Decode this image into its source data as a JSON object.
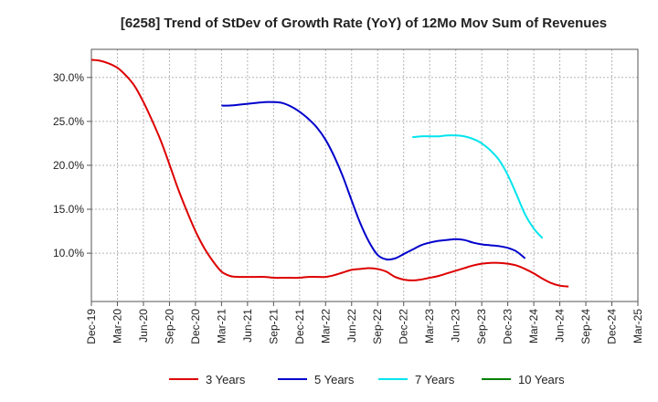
{
  "chart_data": {
    "type": "line",
    "title": "[6258]  Trend of StDev of Growth Rate (YoY) of 12Mo Mov Sum of Revenues",
    "xlabel": "",
    "ylabel": "",
    "x_ticks": [
      "Dec-19",
      "Mar-20",
      "Jun-20",
      "Sep-20",
      "Dec-20",
      "Mar-21",
      "Jun-21",
      "Sep-21",
      "Dec-21",
      "Mar-22",
      "Jun-22",
      "Sep-22",
      "Dec-22",
      "Mar-23",
      "Jun-23",
      "Sep-23",
      "Dec-23",
      "Mar-24",
      "Jun-24",
      "Sep-24",
      "Dec-24",
      "Mar-25"
    ],
    "y_ticks": [
      "10.0%",
      "15.0%",
      "20.0%",
      "25.0%",
      "30.0%"
    ],
    "y_tick_values": [
      10,
      15,
      20,
      25,
      30
    ],
    "ylim": [
      4.5,
      33.2
    ],
    "grid": true,
    "legend_position": "bottom",
    "series": [
      {
        "name": "3 Years",
        "color": "#dd0000",
        "start_index": 0,
        "values": [
          32.0,
          31.9,
          31.6,
          31.1,
          30.2,
          29.0,
          27.2,
          25.1,
          22.8,
          20.1,
          17.3,
          14.8,
          12.5,
          10.6,
          9.1,
          7.9,
          7.4,
          7.3,
          7.3,
          7.3,
          7.3,
          7.2,
          7.2,
          7.2,
          7.2,
          7.3,
          7.3,
          7.3,
          7.5,
          7.8,
          8.1,
          8.2,
          8.3,
          8.2,
          7.9,
          7.3,
          7.0,
          6.9,
          7.0,
          7.2,
          7.4,
          7.7,
          8.0,
          8.3,
          8.6,
          8.8,
          8.9,
          8.9,
          8.8,
          8.6,
          8.2,
          7.7,
          7.1,
          6.6,
          6.3,
          6.2
        ]
      },
      {
        "name": "5 Years",
        "color": "#0000cc",
        "start_index": 15,
        "values": [
          26.8,
          26.8,
          26.9,
          27.0,
          27.1,
          27.2,
          27.2,
          27.1,
          26.7,
          26.1,
          25.3,
          24.3,
          22.9,
          21.0,
          18.7,
          16.0,
          13.4,
          11.3,
          9.8,
          9.3,
          9.4,
          9.9,
          10.4,
          10.9,
          11.2,
          11.4,
          11.5,
          11.6,
          11.5,
          11.2,
          11.0,
          10.9,
          10.8,
          10.6,
          10.2,
          9.4
        ]
      },
      {
        "name": "7 Years",
        "color": "#00e5ee",
        "start_index": 37,
        "values": [
          23.2,
          23.3,
          23.3,
          23.3,
          23.4,
          23.4,
          23.3,
          23.0,
          22.5,
          21.7,
          20.6,
          18.9,
          16.7,
          14.4,
          12.8,
          11.7
        ]
      },
      {
        "name": "10 Years",
        "color": "#008000",
        "start_index": 0,
        "values": []
      }
    ]
  }
}
